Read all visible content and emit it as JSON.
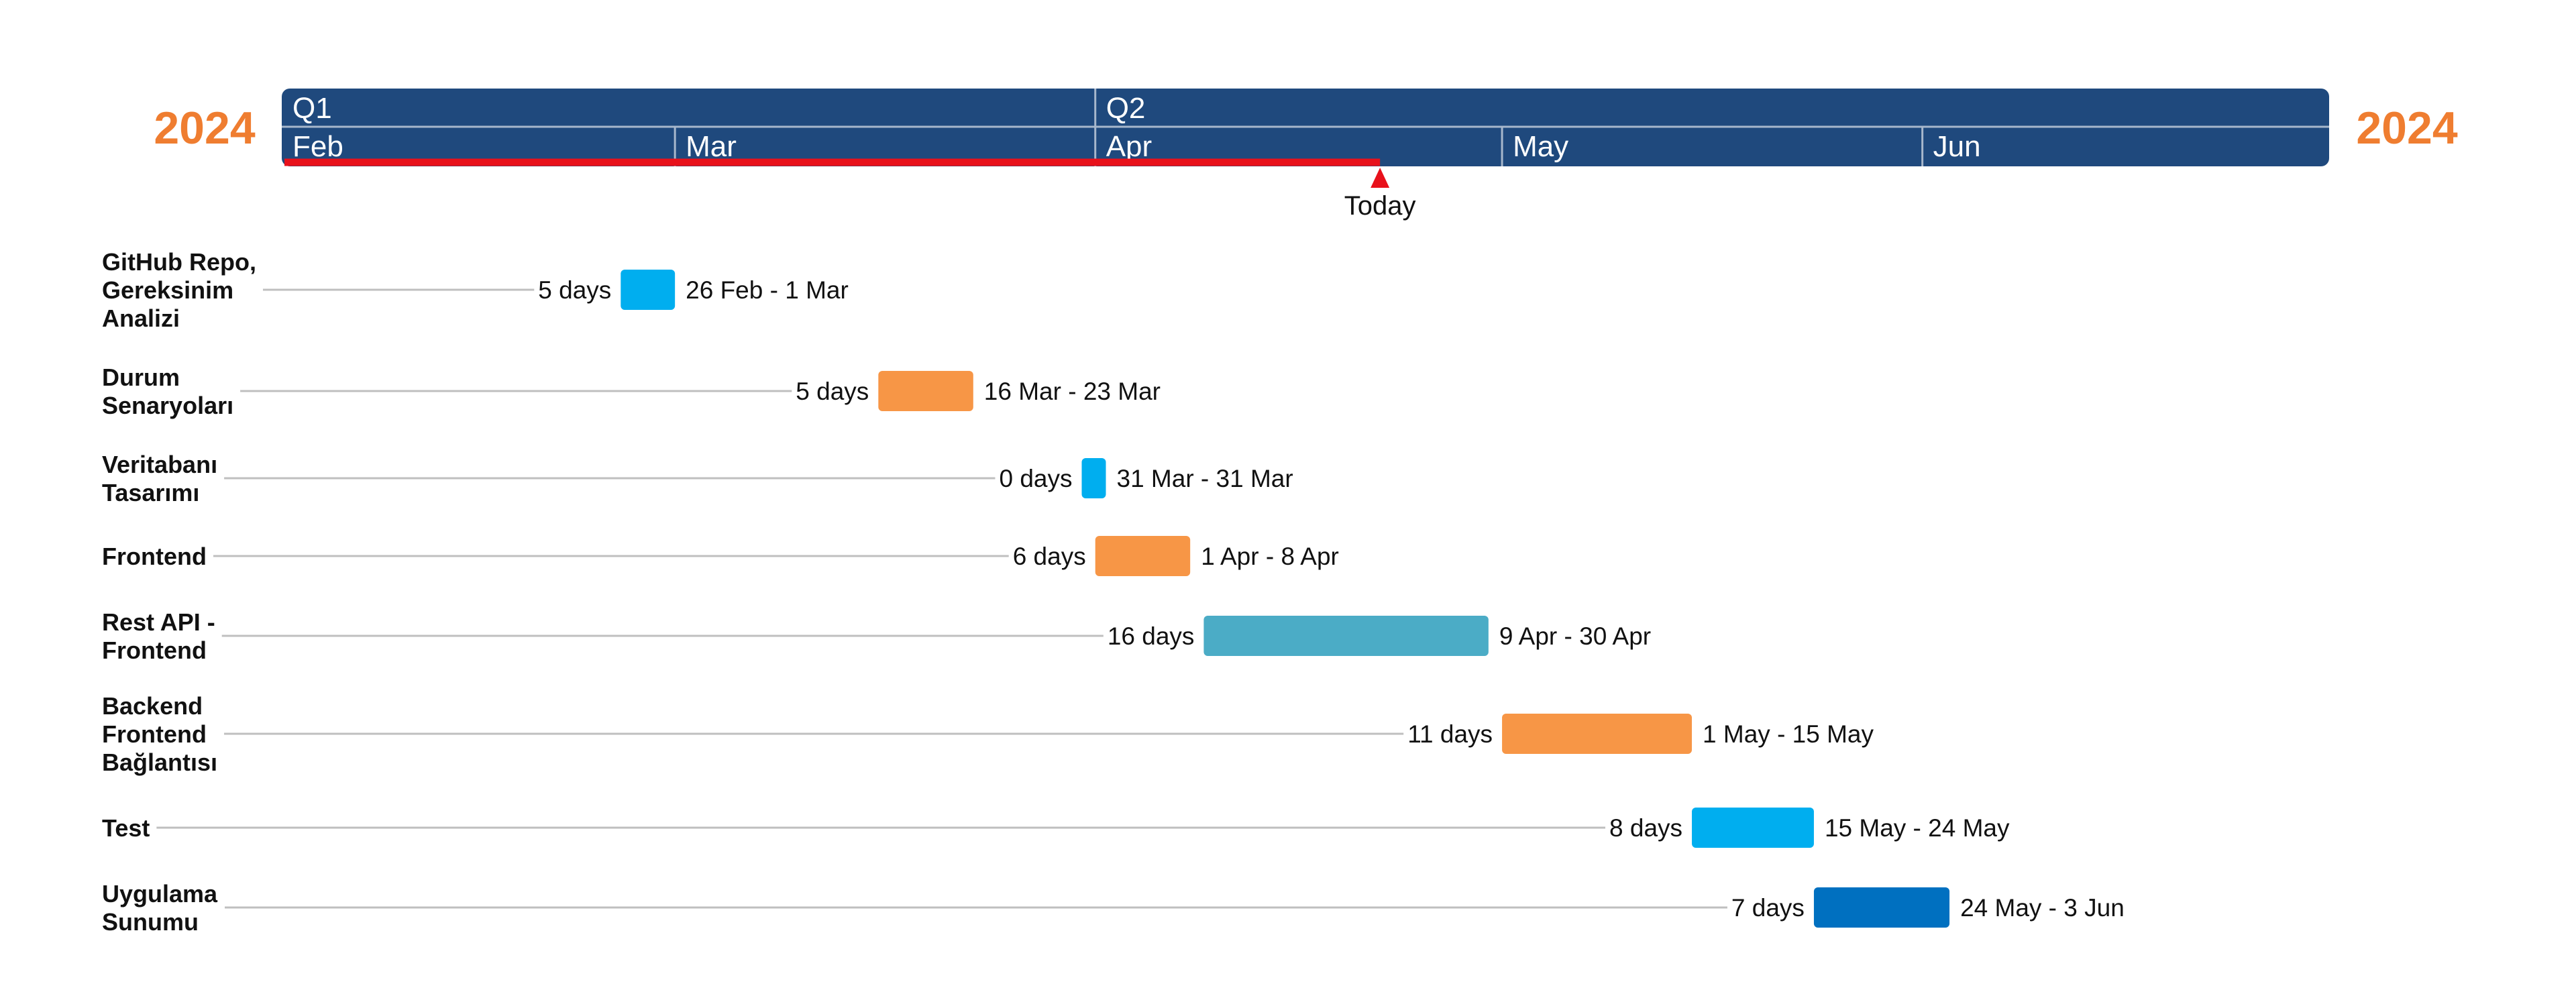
{
  "header": {
    "year_left": "2024",
    "year_right": "2024",
    "year_color": "#EF7D30",
    "band_color": "#1F497D",
    "quarters": [
      {
        "label": "Q1",
        "start": "2024-02-01",
        "end": "2024-04-01"
      },
      {
        "label": "Q2",
        "start": "2024-04-01",
        "end": "2024-07-01"
      }
    ],
    "months": [
      {
        "label": "Feb",
        "start": "2024-02-01",
        "end": "2024-03-01"
      },
      {
        "label": "Mar",
        "start": "2024-03-01",
        "end": "2024-04-01"
      },
      {
        "label": "Apr",
        "start": "2024-04-01",
        "end": "2024-05-01"
      },
      {
        "label": "May",
        "start": "2024-05-01",
        "end": "2024-06-01"
      },
      {
        "label": "Jun",
        "start": "2024-06-01",
        "end": "2024-07-01"
      }
    ]
  },
  "today": {
    "label": "Today",
    "date": "2024-04-22",
    "color": "#E8111B"
  },
  "chart_data": {
    "type": "gantt",
    "x_range": [
      "2024-02-01",
      "2024-07-01"
    ],
    "tasks": [
      {
        "name": "GitHub Repo, Gereksinim Analizi",
        "lines": [
          "GitHub Repo,",
          "Gereksinim",
          "Analizi"
        ],
        "start": "2024-02-26",
        "end": "2024-03-01",
        "duration_label": "5 days",
        "date_label": "26 Feb - 1 Mar",
        "color": "#00AEEF"
      },
      {
        "name": "Durum Senaryoları",
        "lines": [
          "Durum",
          "Senaryoları"
        ],
        "start": "2024-03-16",
        "end": "2024-03-23",
        "duration_label": "5 days",
        "date_label": "16 Mar - 23 Mar",
        "color": "#F79646"
      },
      {
        "name": "Veritabanı Tasarımı",
        "lines": [
          "Veritabanı",
          "Tasarımı"
        ],
        "start": "2024-03-31",
        "end": "2024-03-31",
        "duration_label": "0 days",
        "date_label": "31 Mar - 31 Mar",
        "color": "#00AEEF"
      },
      {
        "name": "Frontend",
        "lines": [
          "Frontend"
        ],
        "start": "2024-04-01",
        "end": "2024-04-08",
        "duration_label": "6 days",
        "date_label": "1 Apr - 8 Apr",
        "color": "#F79646"
      },
      {
        "name": "Rest API - Frontend",
        "lines": [
          "Rest API -",
          "Frontend"
        ],
        "start": "2024-04-09",
        "end": "2024-04-30",
        "duration_label": "16 days",
        "date_label": "9 Apr - 30 Apr",
        "color": "#4BACC6"
      },
      {
        "name": "Backend Frontend Bağlantısı",
        "lines": [
          "Backend",
          "Frontend",
          "Bağlantısı"
        ],
        "start": "2024-05-01",
        "end": "2024-05-15",
        "duration_label": "11 days",
        "date_label": "1 May - 15 May",
        "color": "#F79646"
      },
      {
        "name": "Test",
        "lines": [
          "Test"
        ],
        "start": "2024-05-15",
        "end": "2024-05-24",
        "duration_label": "8 days",
        "date_label": "15 May - 24 May",
        "color": "#00AEEF"
      },
      {
        "name": "Uygulama Sunumu",
        "lines": [
          "Uygulama",
          "Sunumu"
        ],
        "start": "2024-05-24",
        "end": "2024-06-03",
        "duration_label": "7 days",
        "date_label": "24 May - 3 Jun",
        "color": "#0070C0"
      }
    ]
  }
}
